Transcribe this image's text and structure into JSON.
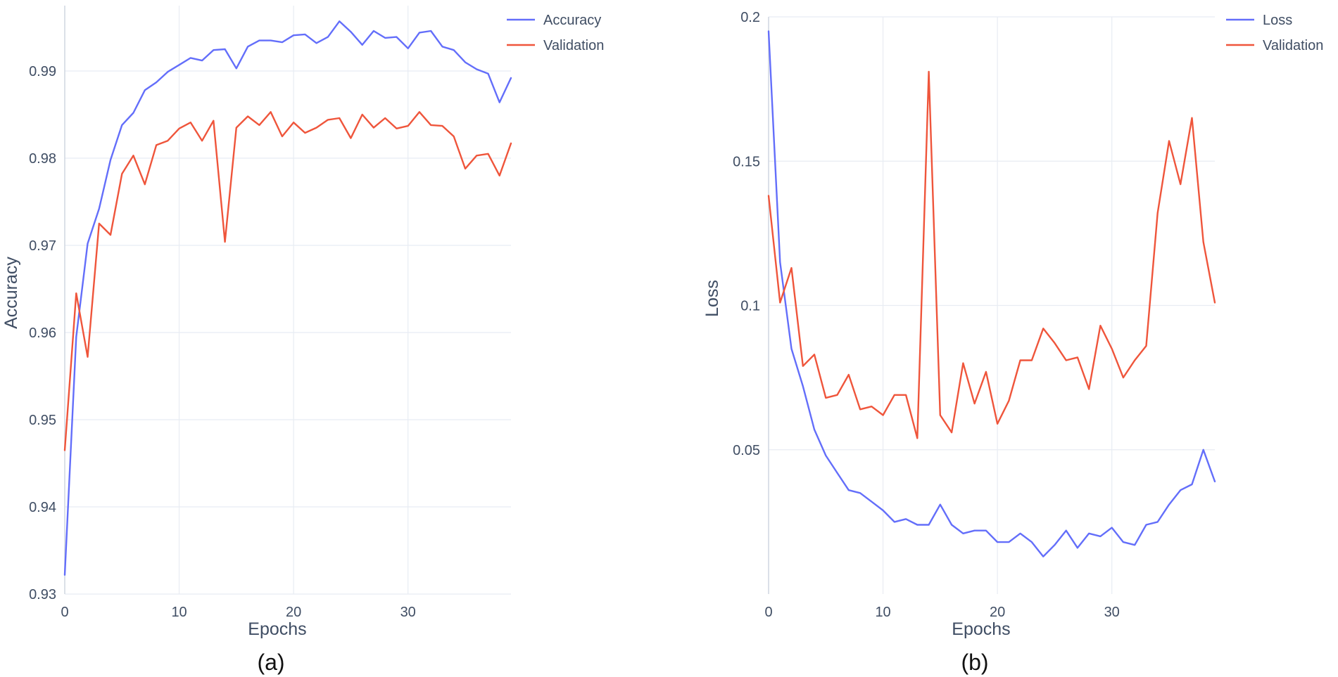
{
  "chart_data": [
    {
      "type": "line",
      "caption": "(a)",
      "xlabel": "Epochs",
      "ylabel": "Accuracy",
      "xlim": [
        0,
        39
      ],
      "ylim": [
        0.93,
        0.9975
      ],
      "xticks": [
        0,
        10,
        20,
        30
      ],
      "xtick_labels": [
        "0",
        "10",
        "20",
        "30"
      ],
      "yticks": [
        0.93,
        0.94,
        0.95,
        0.96,
        0.97,
        0.98,
        0.99
      ],
      "ytick_labels": [
        "0.93",
        "0.94",
        "0.95",
        "0.96",
        "0.97",
        "0.98",
        "0.99"
      ],
      "grid": true,
      "legend": "top-right",
      "x": [
        0,
        1,
        2,
        3,
        4,
        5,
        6,
        7,
        8,
        9,
        10,
        11,
        12,
        13,
        14,
        15,
        16,
        17,
        18,
        19,
        20,
        21,
        22,
        23,
        24,
        25,
        26,
        27,
        28,
        29,
        30,
        31,
        32,
        33,
        34,
        35,
        36,
        37,
        38,
        39
      ],
      "series": [
        {
          "name": "Accuracy",
          "color": "#636efa",
          "values": [
            0.9322,
            0.9595,
            0.9702,
            0.9742,
            0.9798,
            0.9838,
            0.9852,
            0.9878,
            0.9887,
            0.9899,
            0.9907,
            0.9915,
            0.9912,
            0.9924,
            0.9925,
            0.9903,
            0.9928,
            0.9935,
            0.9935,
            0.9933,
            0.9941,
            0.9942,
            0.9932,
            0.9939,
            0.9957,
            0.9945,
            0.993,
            0.9946,
            0.9938,
            0.9939,
            0.9926,
            0.9944,
            0.9946,
            0.9928,
            0.9924,
            0.991,
            0.9902,
            0.9897,
            0.9864,
            0.9892
          ]
        },
        {
          "name": "Validation",
          "color": "#ef553b",
          "values": [
            0.9465,
            0.9645,
            0.9572,
            0.9725,
            0.9712,
            0.9782,
            0.9803,
            0.977,
            0.9815,
            0.982,
            0.9834,
            0.9841,
            0.982,
            0.9843,
            0.9704,
            0.9835,
            0.9848,
            0.9838,
            0.9853,
            0.9825,
            0.9841,
            0.9829,
            0.9835,
            0.9844,
            0.9846,
            0.9823,
            0.985,
            0.9835,
            0.9846,
            0.9834,
            0.9837,
            0.9853,
            0.9838,
            0.9837,
            0.9825,
            0.9788,
            0.9803,
            0.9805,
            0.978,
            0.9817
          ]
        }
      ]
    },
    {
      "type": "line",
      "caption": "(b)",
      "xlabel": "Epochs",
      "ylabel": "Loss",
      "xlim": [
        0,
        39
      ],
      "ylim": [
        0.0,
        0.2
      ],
      "xticks": [
        0,
        10,
        20,
        30
      ],
      "xtick_labels": [
        "0",
        "10",
        "20",
        "30"
      ],
      "yticks": [
        0.05,
        0.1,
        0.15,
        0.2
      ],
      "ytick_labels": [
        "0.05",
        "0.1",
        "0.15",
        "0.2"
      ],
      "grid": true,
      "legend": "top-right",
      "x": [
        0,
        1,
        2,
        3,
        4,
        5,
        6,
        7,
        8,
        9,
        10,
        11,
        12,
        13,
        14,
        15,
        16,
        17,
        18,
        19,
        20,
        21,
        22,
        23,
        24,
        25,
        26,
        27,
        28,
        29,
        30,
        31,
        32,
        33,
        34,
        35,
        36,
        37,
        38,
        39
      ],
      "series": [
        {
          "name": "Loss",
          "color": "#636efa",
          "values": [
            0.195,
            0.115,
            0.085,
            0.072,
            0.057,
            0.048,
            0.042,
            0.036,
            0.035,
            0.032,
            0.029,
            0.025,
            0.026,
            0.024,
            0.024,
            0.031,
            0.024,
            0.021,
            0.022,
            0.022,
            0.018,
            0.018,
            0.021,
            0.018,
            0.013,
            0.017,
            0.022,
            0.016,
            0.021,
            0.02,
            0.023,
            0.018,
            0.017,
            0.024,
            0.025,
            0.031,
            0.036,
            0.038,
            0.05,
            0.039
          ]
        },
        {
          "name": "Validation",
          "color": "#ef553b",
          "values": [
            0.138,
            0.101,
            0.113,
            0.079,
            0.083,
            0.068,
            0.069,
            0.076,
            0.064,
            0.065,
            0.062,
            0.069,
            0.069,
            0.054,
            0.181,
            0.062,
            0.056,
            0.08,
            0.066,
            0.077,
            0.059,
            0.067,
            0.081,
            0.081,
            0.092,
            0.087,
            0.081,
            0.082,
            0.071,
            0.093,
            0.085,
            0.075,
            0.081,
            0.086,
            0.132,
            0.157,
            0.142,
            0.165,
            0.122,
            0.101
          ]
        }
      ]
    }
  ]
}
